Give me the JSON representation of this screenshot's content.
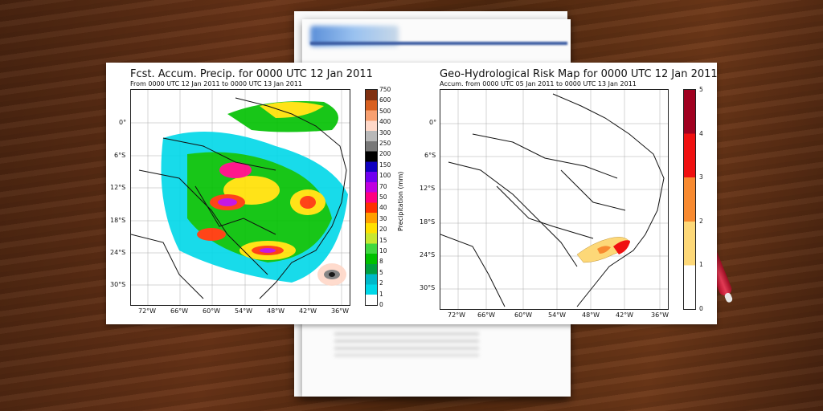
{
  "left_map": {
    "title": "Fcst. Accum. Precip. for 0000 UTC 12 Jan 2011",
    "subtitle": "From 0000 UTC 12 Jan 2011 to 0000 UTC 13 Jan 2011",
    "lon_ticks": [
      "72°W",
      "66°W",
      "60°W",
      "54°W",
      "48°W",
      "42°W",
      "36°W"
    ],
    "lat_ticks": [
      "0°",
      "6°S",
      "12°S",
      "18°S",
      "24°S",
      "30°S"
    ],
    "colorbar_label": "Precipitation (mm)",
    "colorbar_ticks": [
      "750",
      "600",
      "500",
      "400",
      "300",
      "250",
      "200",
      "150",
      "100",
      "70",
      "50",
      "40",
      "30",
      "20",
      "15",
      "10",
      "8",
      "5",
      "2",
      "1",
      "0"
    ],
    "colors": [
      "#ffffff",
      "#00d8e8",
      "#00b8c8",
      "#00a040",
      "#00c000",
      "#40d840",
      "#c8e830",
      "#ffe000",
      "#ffa000",
      "#ff3000",
      "#ff0080",
      "#c000e0",
      "#7000f0",
      "#1000c0",
      "#000000",
      "#787878",
      "#b8b8b8",
      "#ffd8c8",
      "#f8a070",
      "#d86020",
      "#803010"
    ]
  },
  "right_map": {
    "title": "Geo-Hydrological Risk Map for 0000 UTC 12 Jan 2011",
    "subtitle": "Accum. from 0000 UTC 05 Jan 2011 to 0000 UTC 13 Jan 2011",
    "lon_ticks": [
      "72°W",
      "66°W",
      "60°W",
      "54°W",
      "48°W",
      "42°W",
      "36°W"
    ],
    "lat_ticks": [
      "0°",
      "6°S",
      "12°S",
      "18°S",
      "24°S",
      "30°S"
    ],
    "colorbar_ticks": [
      "5",
      "4",
      "3",
      "2",
      "1",
      "0"
    ],
    "colors": [
      "#ffffff",
      "#fdd878",
      "#f88a30",
      "#f01010",
      "#a00020"
    ]
  }
}
